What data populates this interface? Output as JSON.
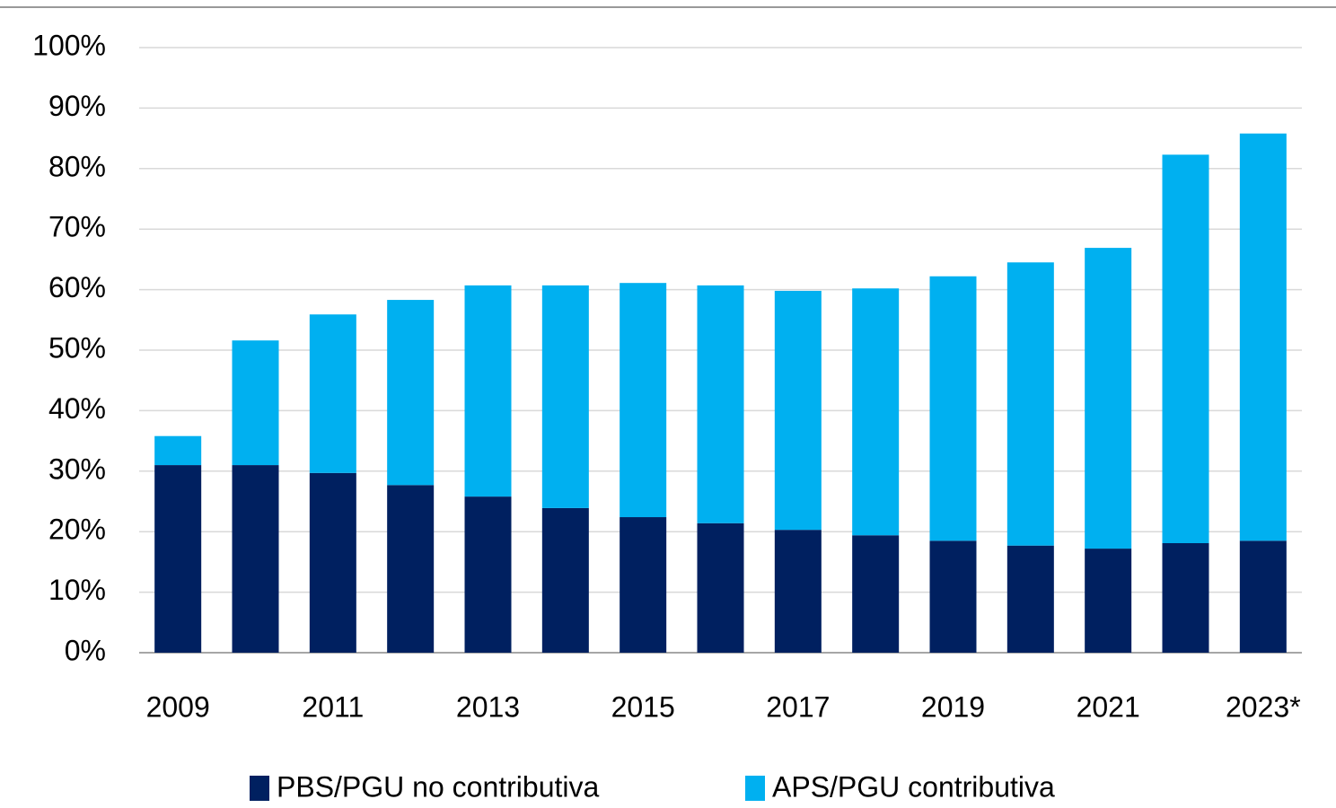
{
  "chart_data": {
    "type": "stacked_bar",
    "categories": [
      "2009",
      null,
      "2011",
      null,
      "2013",
      null,
      "2015",
      null,
      "2017",
      null,
      "2019",
      null,
      "2021",
      null,
      "2023*"
    ],
    "series": [
      {
        "name": "PBS/PGU no contributiva",
        "color": "#002060",
        "values": [
          31.0,
          31.0,
          29.7,
          27.7,
          25.8,
          23.9,
          22.4,
          21.4,
          20.3,
          19.4,
          18.5,
          17.7,
          17.2,
          18.1,
          18.5
        ]
      },
      {
        "name": "APS/PGU contributiva",
        "color": "#00b0f0",
        "values": [
          4.8,
          20.6,
          26.2,
          30.6,
          34.9,
          36.8,
          38.7,
          39.3,
          39.5,
          40.8,
          43.7,
          46.8,
          49.7,
          64.2,
          67.3
        ]
      }
    ],
    "ylim": [
      0,
      100
    ],
    "yticks": [
      {
        "value": 0,
        "label": "0%"
      },
      {
        "value": 10,
        "label": "10%"
      },
      {
        "value": 20,
        "label": "20%"
      },
      {
        "value": 30,
        "label": "30%"
      },
      {
        "value": 40,
        "label": "40%"
      },
      {
        "value": 50,
        "label": "50%"
      },
      {
        "value": 60,
        "label": "60%"
      },
      {
        "value": 70,
        "label": "70%"
      },
      {
        "value": 80,
        "label": "80%"
      },
      {
        "value": 90,
        "label": "90%"
      },
      {
        "value": 100,
        "label": "100%"
      }
    ],
    "grid": true,
    "legend": "bottom"
  }
}
